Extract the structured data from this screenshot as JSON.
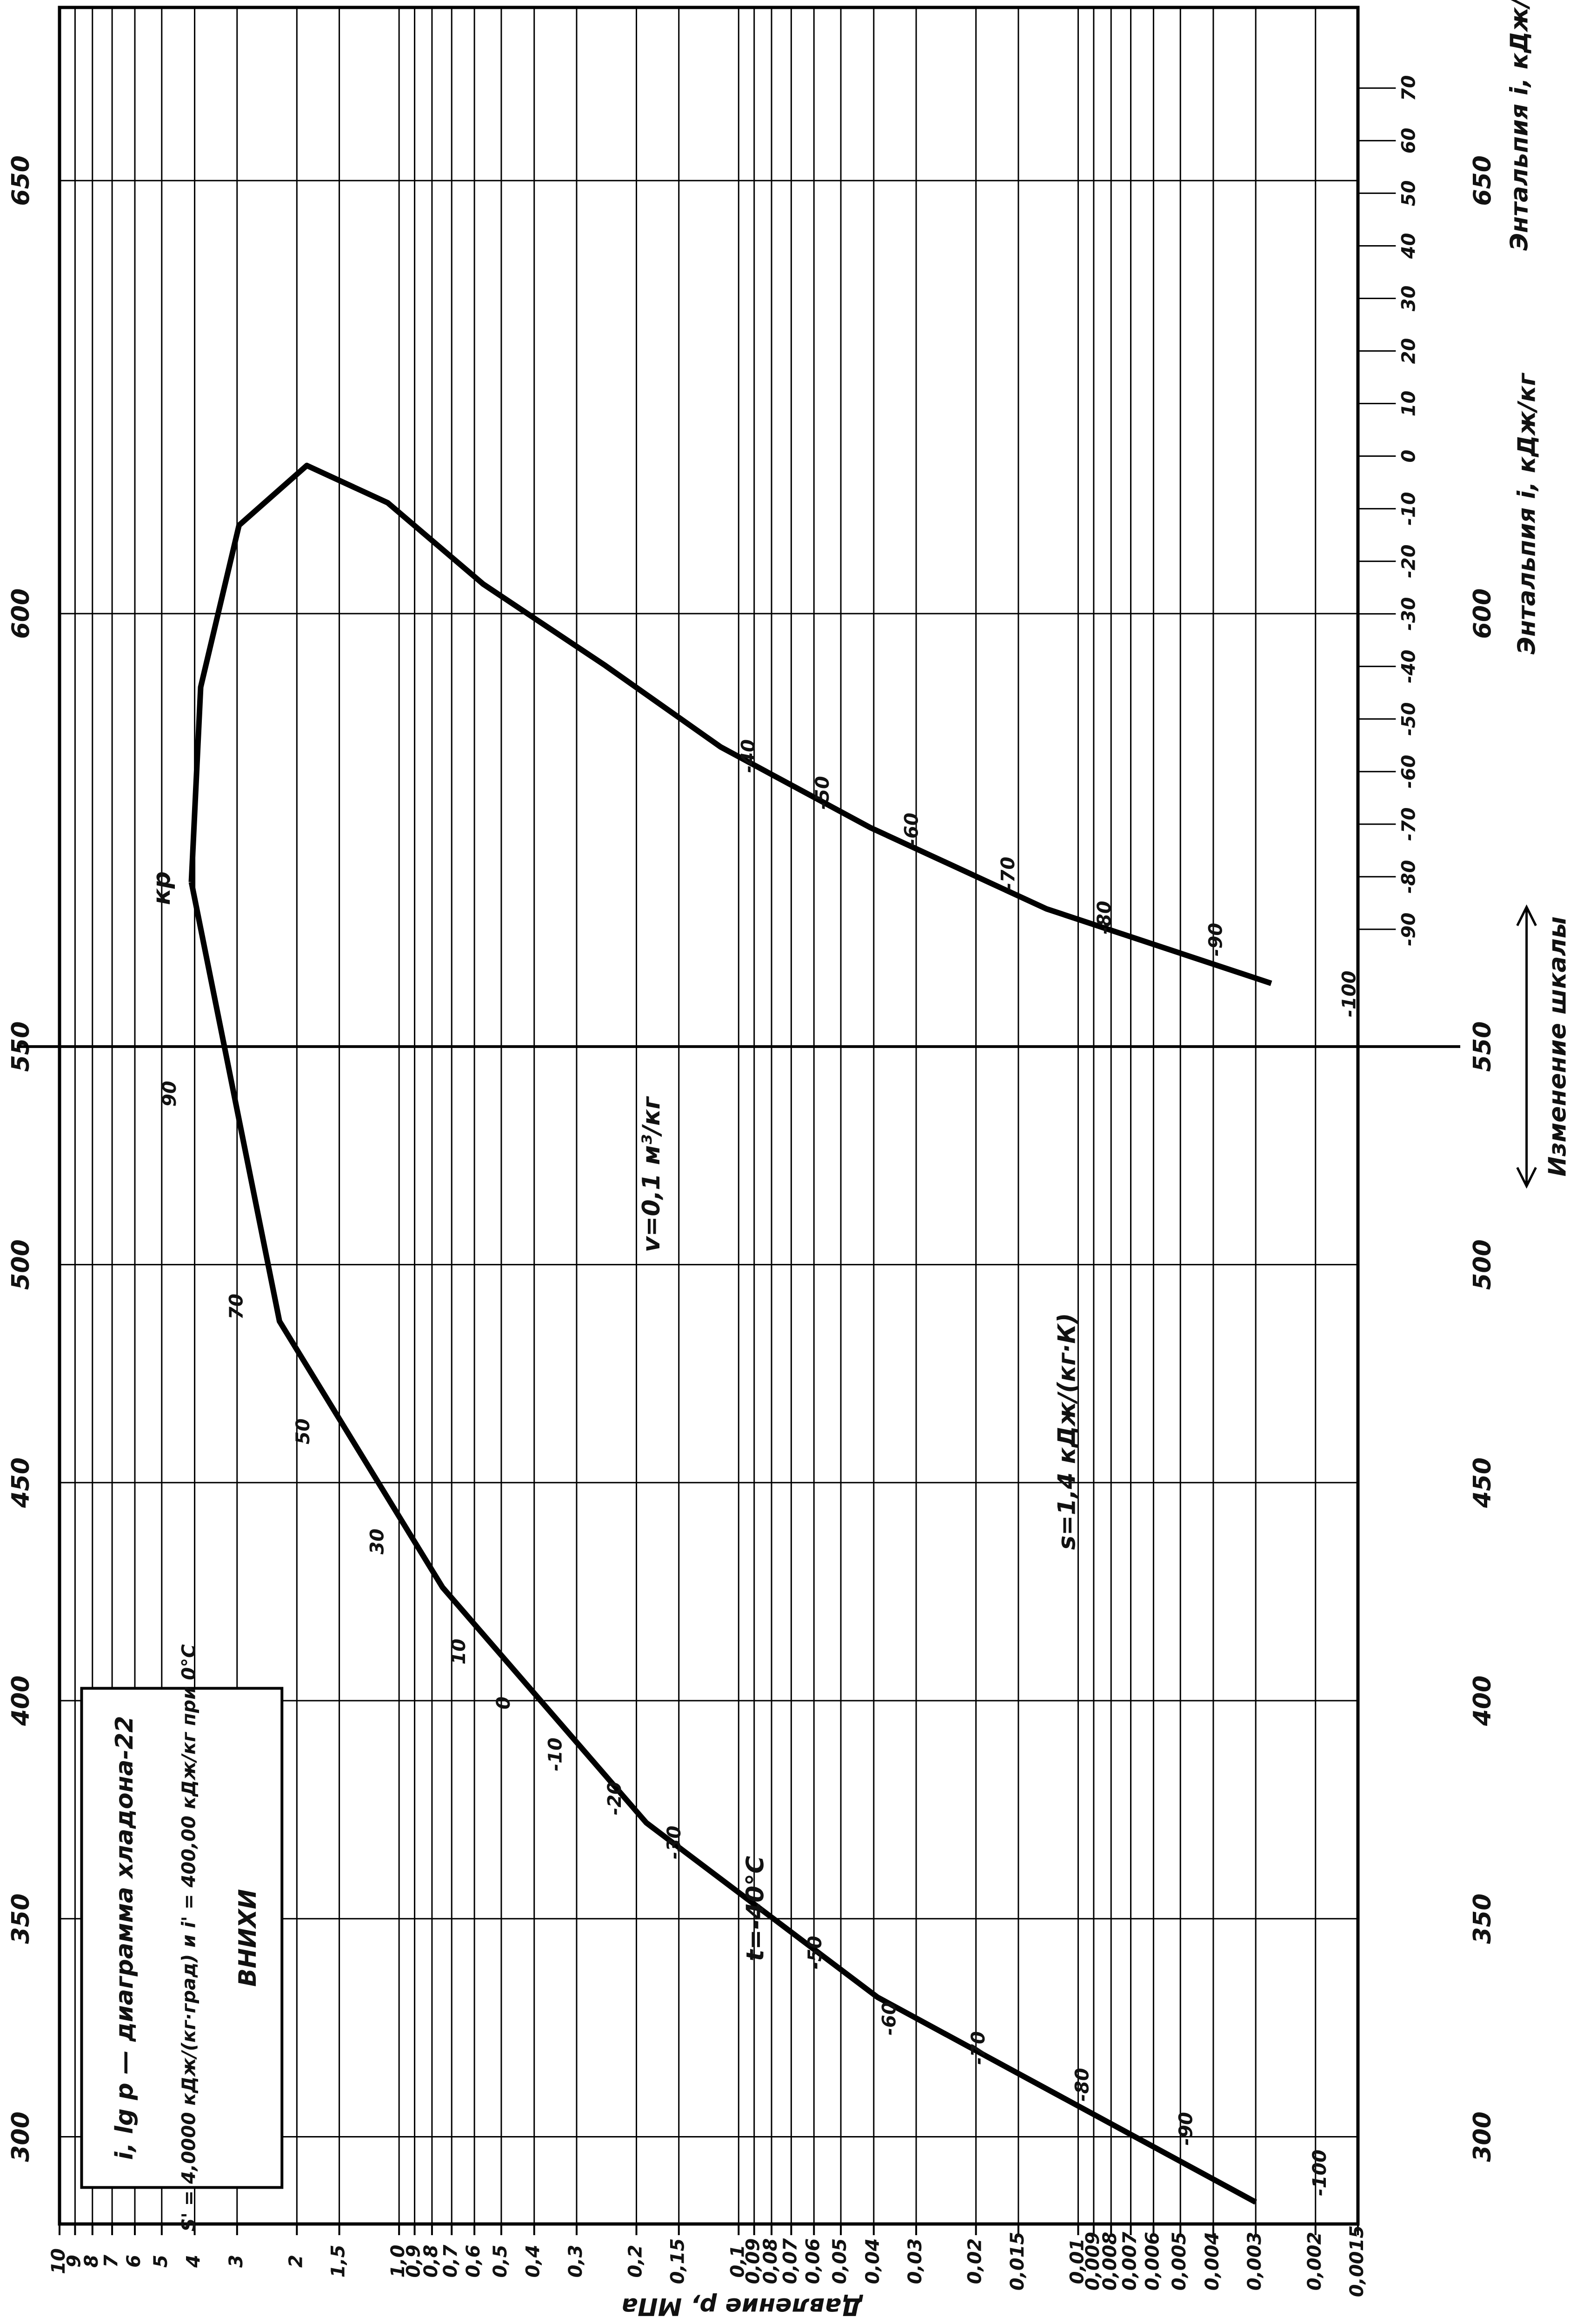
{
  "chart_data": {
    "type": "line",
    "title": "i, lg p — диаграмма хладона-22",
    "subtitle": "S' = 4,0000 кДж/(кг·град) и i' = 400,00 кДж/кг при 0°С",
    "source": "ВНИХИ",
    "x_label": "Давление p, МПа",
    "y_label": "Энтальпия i, кДж/кг",
    "x_log": true,
    "grid": true,
    "xlim": [
      10,
      0.0015
    ],
    "ylim": [
      280,
      670
    ],
    "scale_change": {
      "value": 550,
      "label": "Изменение шкалы"
    },
    "xticks": [
      10,
      9,
      8,
      7,
      6,
      5,
      4,
      3,
      2,
      {
        "value": 1.5,
        "label": "1,5"
      },
      {
        "value": 1,
        "label": "1,0"
      },
      {
        "value": 0.9,
        "label": "0,9"
      },
      {
        "value": 0.8,
        "label": "0,8"
      },
      {
        "value": 0.7,
        "label": "0,7"
      },
      {
        "value": 0.6,
        "label": "0,6"
      },
      {
        "value": 0.5,
        "label": "0,5"
      },
      {
        "value": 0.4,
        "label": "0,4"
      },
      {
        "value": 0.3,
        "label": "0,3"
      },
      {
        "value": 0.2,
        "label": "0,2"
      },
      {
        "value": 0.15,
        "label": "0,15"
      },
      {
        "value": 0.1,
        "label": "0,1"
      },
      {
        "value": 0.09,
        "label": "0,09"
      },
      {
        "value": 0.08,
        "label": "0,08"
      },
      {
        "value": 0.07,
        "label": "0,07"
      },
      {
        "value": 0.06,
        "label": "0,06"
      },
      {
        "value": 0.05,
        "label": "0,05"
      },
      {
        "value": 0.04,
        "label": "0,04"
      },
      {
        "value": 0.03,
        "label": "0,03"
      },
      {
        "value": 0.02,
        "label": "0,02"
      },
      {
        "value": 0.015,
        "label": "0,015"
      },
      {
        "value": 0.01,
        "label": "0,01"
      },
      {
        "value": 0.009,
        "label": "0,009"
      },
      {
        "value": 0.008,
        "label": "0,008"
      },
      {
        "value": 0.007,
        "label": "0,007"
      },
      {
        "value": 0.006,
        "label": "0,006"
      },
      {
        "value": 0.005,
        "label": "0,005"
      },
      {
        "value": 0.004,
        "label": "0,004"
      },
      {
        "value": 0.003,
        "label": "0,003"
      },
      {
        "value": 0.002,
        "label": "0,002"
      },
      {
        "value": 0.0015,
        "label": "0,0015"
      }
    ],
    "yticks": [
      300,
      350,
      400,
      450,
      500,
      550,
      600,
      650
    ],
    "series": [
      {
        "color": "#000000",
        "x": [
          4.09,
          2.25,
          0.745,
          0.187,
          0.039,
          0.003
        ],
        "values": [
          569,
          487,
          426,
          372,
          332,
          285
        ]
      },
      {
        "color": "#000000",
        "x": [
          4.09,
          3.84,
          2.96,
          1.87,
          1.08,
          0.565,
          0.247,
          0.113,
          0.041,
          0.0124,
          0.0027
        ],
        "values": [
          569,
          591.5,
          610.2,
          617.1,
          612.8,
          603.4,
          594,
          584.6,
          575.3,
          565.9,
          557.3
        ]
      }
    ],
    "annotations": [
      "кр",
      "t=-40°C",
      "v=0,1 м³/кг",
      "s=1,4 кДж/(кг·К)"
    ],
    "saturation_labels": [
      "90",
      "70",
      "50",
      "30",
      "10",
      "0",
      "-10",
      "-20",
      "-30",
      "-50",
      "-60",
      "-70",
      "-80",
      "-90",
      "-100",
      "-40",
      "-50",
      "-60",
      "-70",
      "-80",
      "-90",
      "-100"
    ],
    "isotherm_scale": [
      70,
      60,
      50,
      40,
      30,
      20,
      10,
      0,
      -10,
      -20,
      -30,
      -40,
      -50,
      -60,
      -70,
      -80,
      -90
    ]
  }
}
